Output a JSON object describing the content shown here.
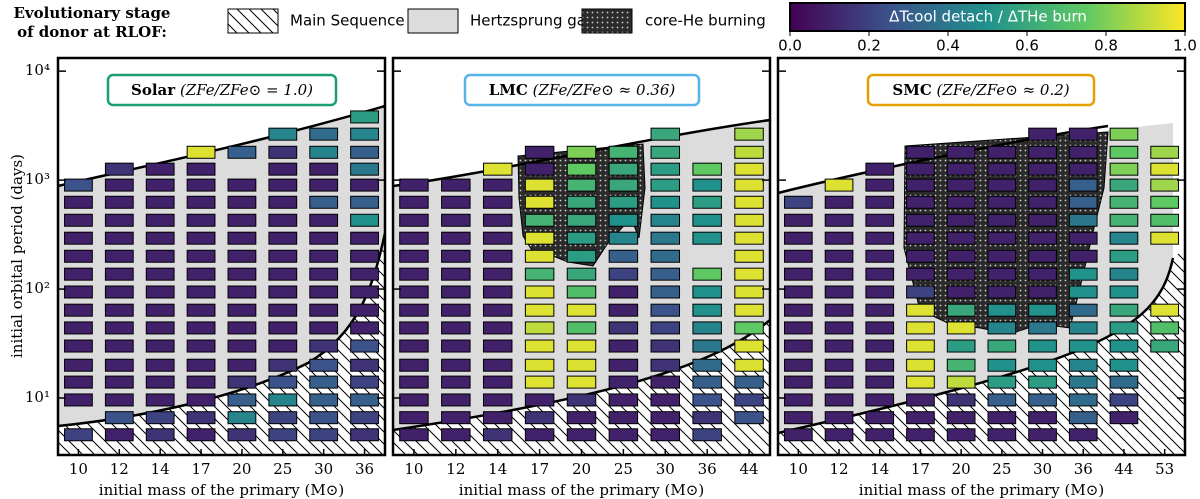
{
  "legend": {
    "title": [
      "Evolutionary stage",
      "of donor at RLOF:"
    ],
    "entries": [
      "Main Sequence",
      "Hertzsprung gap",
      "core-He burning"
    ]
  },
  "colorbar": {
    "title": "ΔTcool detach / ΔTHe burn",
    "colormap": [
      "#440154",
      "#3b528b",
      "#21918c",
      "#5ec962",
      "#fde725"
    ],
    "lim": [
      0,
      1
    ],
    "ticks": [
      {
        "value": 0,
        "label": "0.0"
      },
      0.2,
      0.4,
      0.6,
      0.8,
      {
        "value": 1,
        "label": "1.0"
      }
    ]
  },
  "chart_data": [
    {
      "type": "heatmap",
      "name": "Solar",
      "metallicity": "(ZFe/ZFe⊙ = 1.0)",
      "label_color": "#1a9e77",
      "ylabel": "initial orbital period (days)",
      "xlabel": "initial mass of the primary (M⊙)",
      "yscale": "log",
      "ylim": [
        3,
        13200
      ],
      "yticks": [
        {
          "value": 10,
          "label": "10¹"
        },
        {
          "value": 100,
          "label": "10²"
        },
        {
          "value": 1000,
          "label": "10³"
        },
        {
          "value": 10000,
          "label": "10⁴"
        }
      ],
      "categories": [
        "10",
        "12",
        "14",
        "17",
        "20",
        "25",
        "30",
        "36"
      ],
      "y": [
        4.6,
        6.6,
        9.6,
        14,
        20,
        30,
        44,
        64,
        94,
        137,
        200,
        293,
        428,
        626,
        900,
        1260,
        1800,
        2640,
        3800
      ],
      "values": [
        [
          0.2,
          null,
          0.1,
          0.1,
          0.1,
          0.1,
          0.1,
          0.1,
          0.1,
          0.1,
          0.1,
          0.1,
          0.1,
          0.1,
          0.25,
          null,
          null,
          null,
          null
        ],
        [
          0.1,
          0.25,
          0.1,
          0.1,
          0.1,
          0.1,
          0.1,
          0.1,
          0.1,
          0.1,
          0.1,
          0.1,
          0.1,
          0.1,
          0.1,
          0.15,
          null,
          null,
          null
        ],
        [
          0.15,
          0.2,
          0.1,
          0.1,
          0.1,
          0.1,
          0.1,
          0.1,
          0.1,
          0.1,
          0.1,
          0.1,
          0.1,
          0.1,
          0.1,
          0.1,
          null,
          null,
          null
        ],
        [
          0.1,
          0.15,
          0.1,
          0.1,
          0.1,
          0.1,
          0.1,
          0.1,
          0.1,
          0.1,
          0.1,
          0.1,
          0.1,
          0.1,
          0.1,
          0.1,
          0.95,
          null,
          null
        ],
        [
          0.15,
          0.45,
          0.3,
          0.15,
          0.1,
          0.1,
          0.1,
          0.1,
          0.1,
          0.1,
          0.1,
          0.1,
          0.1,
          0.1,
          0.1,
          null,
          0.3,
          null,
          null
        ],
        [
          0.2,
          0.2,
          0.45,
          0.25,
          0.15,
          0.1,
          0.1,
          0.1,
          0.1,
          0.1,
          0.1,
          0.1,
          0.1,
          0.1,
          0.1,
          0.1,
          0.15,
          0.45,
          null
        ],
        [
          0.2,
          0.25,
          0.3,
          0.3,
          0.25,
          0.15,
          0.1,
          0.1,
          0.1,
          0.1,
          0.1,
          0.1,
          0.1,
          0.3,
          0.1,
          0.1,
          0.45,
          0.35,
          null
        ],
        [
          0.15,
          0.2,
          0.3,
          0.2,
          0.15,
          0.25,
          0.1,
          0.1,
          0.1,
          0.1,
          0.1,
          0.1,
          0.5,
          0.3,
          0.1,
          0.4,
          0.3,
          0.45,
          0.55
        ]
      ]
    },
    {
      "type": "heatmap",
      "name": "LMC",
      "metallicity": "(ZFe/ZFe⊙ ≈ 0.36)",
      "label_color": "#56b4e9",
      "xlabel": "initial mass of the primary (M⊙)",
      "yscale": "log",
      "ylim": [
        3,
        13200
      ],
      "yticks": [
        10,
        100,
        1000,
        10000
      ],
      "categories": [
        "10",
        "12",
        "14",
        "17",
        "20",
        "25",
        "30",
        "36",
        "44"
      ],
      "y": [
        4.6,
        6.6,
        9.6,
        14,
        20,
        30,
        44,
        64,
        94,
        137,
        200,
        293,
        428,
        626,
        900,
        1260,
        1800,
        2640,
        3800
      ],
      "values": [
        [
          0.1,
          0.1,
          0.1,
          0.1,
          0.1,
          0.1,
          0.1,
          0.1,
          0.1,
          0.1,
          0.1,
          0.1,
          0.1,
          0.1,
          0.1,
          null,
          null,
          null,
          null
        ],
        [
          0.1,
          0.1,
          0.1,
          0.1,
          0.1,
          0.1,
          0.1,
          0.1,
          0.1,
          0.1,
          0.1,
          0.1,
          0.1,
          0.1,
          0.1,
          null,
          null,
          null,
          null
        ],
        [
          0.15,
          0.1,
          0.1,
          0.1,
          0.1,
          0.1,
          0.1,
          0.1,
          0.1,
          0.1,
          0.1,
          0.1,
          0.1,
          0.1,
          0.1,
          0.95,
          null,
          null,
          null
        ],
        [
          0.1,
          0.15,
          0.1,
          0.95,
          0.95,
          0.95,
          0.9,
          0.95,
          0.95,
          0.65,
          0.95,
          0.95,
          0.65,
          0.95,
          0.95,
          0.1,
          0.1,
          null,
          null
        ],
        [
          0.1,
          0.1,
          0.15,
          0.95,
          0.95,
          0.95,
          0.7,
          0.95,
          0.7,
          0.6,
          0.55,
          0.55,
          0.6,
          0.6,
          0.65,
          0.75,
          0.8,
          null,
          null
        ],
        [
          0.1,
          0.1,
          0.1,
          0.1,
          0.1,
          0.1,
          0.15,
          0.1,
          0.1,
          0.2,
          0.3,
          0.45,
          0.5,
          0.55,
          0.6,
          0.6,
          0.65,
          null,
          null
        ],
        [
          0.1,
          0.1,
          0.1,
          0.1,
          0.15,
          0.15,
          0.2,
          0.25,
          0.3,
          0.3,
          0.35,
          0.4,
          0.45,
          0.5,
          0.55,
          0.55,
          0.6,
          0.6,
          null
        ],
        [
          0.2,
          0.15,
          0.25,
          0.3,
          0.35,
          0.4,
          0.45,
          0.5,
          0.5,
          0.75,
          null,
          0.5,
          0.5,
          0.55,
          0.5,
          0.75,
          null,
          null,
          null
        ],
        [
          null,
          0.25,
          0.2,
          0.3,
          0.95,
          0.95,
          0.75,
          0.95,
          0.95,
          0.95,
          0.95,
          0.95,
          0.95,
          0.95,
          0.95,
          0.95,
          0.9,
          0.85,
          null
        ]
      ]
    },
    {
      "type": "heatmap",
      "name": "SMC",
      "metallicity": "(ZFe/ZFe⊙ ≈ 0.2)",
      "label_color": "#e69f00",
      "xlabel": "initial mass of the primary (M⊙)",
      "yscale": "log",
      "ylim": [
        3,
        13200
      ],
      "yticks": [
        10,
        100,
        1000,
        10000
      ],
      "categories": [
        "10",
        "12",
        "14",
        "17",
        "20",
        "25",
        "30",
        "36",
        "44",
        "53"
      ],
      "y": [
        4.6,
        6.6,
        9.6,
        14,
        20,
        30,
        44,
        64,
        94,
        137,
        200,
        293,
        428,
        626,
        900,
        1260,
        1800,
        2640,
        3800
      ],
      "values": [
        [
          0.1,
          0.1,
          0.1,
          0.1,
          0.1,
          0.1,
          0.1,
          0.1,
          0.1,
          0.1,
          0.1,
          0.1,
          0.1,
          0.2,
          null,
          null,
          null,
          null,
          null
        ],
        [
          0.1,
          0.1,
          0.1,
          0.1,
          0.1,
          0.1,
          0.1,
          0.1,
          0.1,
          0.1,
          0.1,
          0.1,
          0.1,
          0.1,
          0.95,
          null,
          null,
          null,
          null
        ],
        [
          0.1,
          0.1,
          0.1,
          0.1,
          0.1,
          0.1,
          0.1,
          0.1,
          0.1,
          0.1,
          0.1,
          0.1,
          0.1,
          0.1,
          0.1,
          0.1,
          null,
          null,
          null
        ],
        [
          0.1,
          0.1,
          0.1,
          0.95,
          0.95,
          0.95,
          0.95,
          0.95,
          0.2,
          0.1,
          0.1,
          0.1,
          0.1,
          0.1,
          0.1,
          0.1,
          0.1,
          null,
          null
        ],
        [
          0.1,
          0.1,
          0.15,
          0.9,
          0.65,
          0.55,
          0.95,
          0.6,
          0.1,
          0.1,
          0.1,
          0.1,
          0.1,
          0.1,
          0.1,
          0.1,
          0.1,
          null,
          null
        ],
        [
          0.1,
          0.1,
          0.3,
          0.55,
          0.5,
          0.6,
          0.45,
          0.5,
          0.1,
          0.1,
          0.1,
          0.1,
          0.1,
          0.1,
          0.1,
          0.1,
          0.1,
          null,
          null
        ],
        [
          0.1,
          0.1,
          0.3,
          0.55,
          0.5,
          0.5,
          0.4,
          0.5,
          0.1,
          0.1,
          0.1,
          0.1,
          0.1,
          0.1,
          0.1,
          0.1,
          0.1,
          0.1,
          null
        ],
        [
          0.1,
          0.3,
          0.35,
          0.4,
          0.45,
          0.5,
          0.45,
          0.35,
          0.5,
          0.5,
          0.1,
          0.1,
          0.4,
          0.3,
          0.3,
          0.1,
          0.1,
          0.1,
          null
        ],
        [
          null,
          0.1,
          0.2,
          0.35,
          0.5,
          0.5,
          0.55,
          0.6,
          0.5,
          0.45,
          0.55,
          0.45,
          0.65,
          0.65,
          0.6,
          0.8,
          0.75,
          0.8,
          null
        ],
        [
          null,
          null,
          null,
          null,
          null,
          0.6,
          0.7,
          0.95,
          null,
          null,
          null,
          0.95,
          0.7,
          0.75,
          0.85,
          0.95,
          0.85,
          null,
          null
        ]
      ]
    }
  ]
}
